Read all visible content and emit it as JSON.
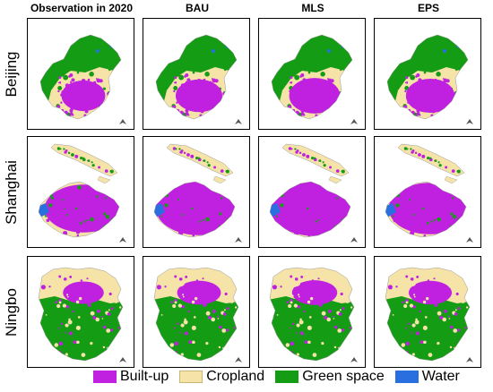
{
  "columns": [
    "Observation in 2020",
    "BAU",
    "MLS",
    "EPS"
  ],
  "rows": [
    {
      "city": "Beijing",
      "builtup_share": [
        0.26,
        0.3,
        0.36,
        0.33
      ]
    },
    {
      "city": "Shanghai",
      "builtup_share": [
        0.58,
        0.7,
        0.74,
        0.66
      ]
    },
    {
      "city": "Ningbo",
      "builtup_share": [
        0.22,
        0.26,
        0.28,
        0.25
      ]
    }
  ],
  "legend": [
    {
      "label": "Built-up",
      "color": "#c020e0",
      "icon": "builtup-swatch"
    },
    {
      "label": "Cropland",
      "color": "#f5e3a8",
      "icon": "cropland-swatch"
    },
    {
      "label": "Green space",
      "color": "#159c15",
      "icon": "greenspace-swatch"
    },
    {
      "label": "Water",
      "color": "#2a6fe0",
      "icon": "water-swatch"
    }
  ]
}
